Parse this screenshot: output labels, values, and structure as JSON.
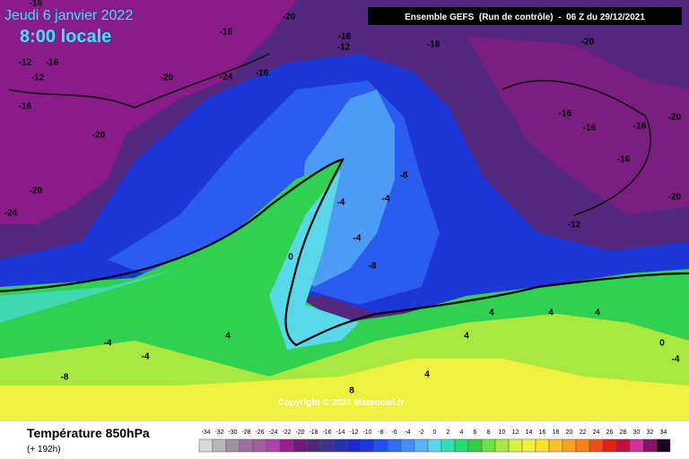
{
  "header": {
    "date": "Jeudi 6 janvier 2022",
    "time": "8:00 locale",
    "run": "Ensemble GEFS  (Run de contrôle)  -  06 Z du 29/12/2021"
  },
  "copyright": "Copyright © 2021 Meteociel.fr",
  "footer": {
    "title": "Température 850hPa",
    "subtitle": "(+ 192h)"
  },
  "legend": {
    "ticks": [
      -34,
      -32,
      -30,
      -28,
      -26,
      -24,
      -22,
      -20,
      -18,
      -16,
      -14,
      -12,
      -10,
      -8,
      -6,
      -4,
      -2,
      0,
      2,
      4,
      6,
      8,
      10,
      12,
      14,
      16,
      18,
      20,
      22,
      24,
      26,
      28,
      30,
      32,
      34
    ],
    "colors": [
      "#d8d8d8",
      "#b8b8b8",
      "#a090a0",
      "#9c6f9c",
      "#a060a0",
      "#b040b0",
      "#9a2090",
      "#701a78",
      "#502878",
      "#3c3290",
      "#2830b0",
      "#1c28d0",
      "#1838e0",
      "#2050f0",
      "#2e6ef8",
      "#4090f8",
      "#58b4f8",
      "#58d8e8",
      "#30e0b0",
      "#28d870",
      "#30d040",
      "#70e040",
      "#a8e840",
      "#d8f040",
      "#f0f040",
      "#f8e030",
      "#f8c030",
      "#f8a020",
      "#f88018",
      "#f05018",
      "#e02010",
      "#c01040",
      "#d030a0",
      "#8a1060",
      "#200020"
    ]
  },
  "contour_labels": [
    -16,
    -20,
    -16,
    -24,
    -16,
    -12,
    -16,
    -20,
    -16,
    -12,
    -12,
    -16,
    -20,
    -24,
    -20,
    -16,
    -20,
    -16,
    -16,
    -16,
    -20,
    -16,
    -20,
    -12,
    -8,
    -4,
    -4,
    -4,
    -8,
    0,
    -4,
    -4,
    -8,
    4,
    4,
    4,
    4,
    4,
    0,
    -4,
    8,
    4
  ]
}
